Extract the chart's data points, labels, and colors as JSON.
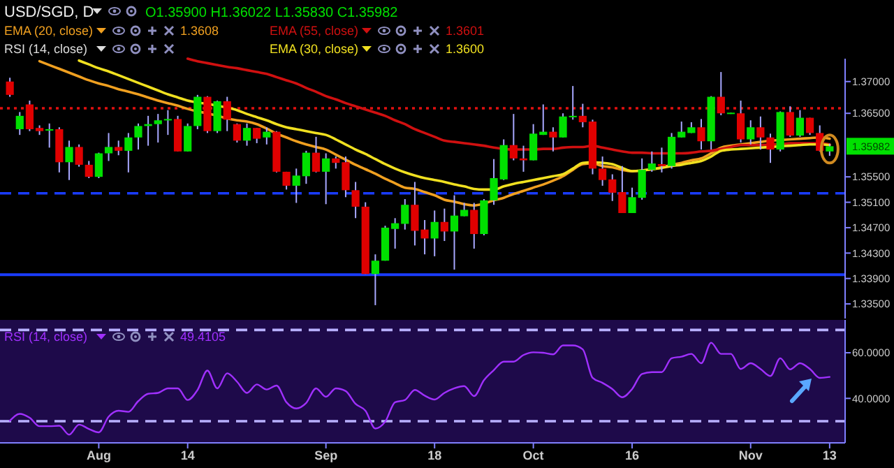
{
  "chart_data": [
    {
      "type": "candlestick",
      "title": "USD/SGD, D",
      "subtitle": "O1.35900 H1.36022 L1.35830 C1.35982",
      "legend": "top left",
      "tick_labels": "y",
      "categories": [
        null,
        null,
        null,
        null,
        null,
        null,
        null,
        null,
        null,
        null,
        null,
        null,
        null,
        null,
        null,
        null,
        null,
        null,
        null,
        null,
        null,
        null,
        null,
        null,
        null,
        null,
        null,
        null,
        null,
        null,
        null,
        null,
        null,
        null,
        null,
        null,
        null,
        null,
        null,
        null,
        null,
        null,
        null,
        null,
        null,
        null,
        null,
        null,
        null,
        null,
        null,
        null,
        null,
        null,
        null,
        null,
        null,
        null,
        null,
        null,
        null,
        null,
        null,
        null,
        null,
        null,
        null,
        null,
        null,
        null,
        null,
        null,
        null,
        null,
        null,
        null,
        null,
        null,
        null,
        null,
        null,
        null,
        null,
        null
      ],
      "ohlc": [
        [
          1.37,
          1.3706,
          1.3676,
          1.3679
        ],
        [
          1.3625,
          1.3652,
          1.3616,
          1.3646
        ],
        [
          1.3664,
          1.367,
          1.3622,
          1.3625
        ],
        [
          1.3627,
          1.3631,
          1.3616,
          1.3622
        ],
        [
          1.3624,
          1.3634,
          1.3596,
          1.3625
        ],
        [
          1.3625,
          1.3628,
          1.3557,
          1.3573
        ],
        [
          1.3573,
          1.3607,
          1.3545,
          1.3597
        ],
        [
          1.3597,
          1.3601,
          1.3566,
          1.3569
        ],
        [
          1.3569,
          1.3575,
          1.3548,
          1.355
        ],
        [
          1.355,
          1.3588,
          1.3548,
          1.3587
        ],
        [
          1.3587,
          1.3619,
          1.3575,
          1.3597
        ],
        [
          1.3597,
          1.3607,
          1.3584,
          1.3591
        ],
        [
          1.3591,
          1.3619,
          1.3557,
          1.3612
        ],
        [
          1.3612,
          1.3634,
          1.3593,
          1.363
        ],
        [
          1.363,
          1.3646,
          1.3599,
          1.3633
        ],
        [
          1.3633,
          1.3649,
          1.3604,
          1.3639
        ],
        [
          1.3639,
          1.3655,
          1.3616,
          1.3641
        ],
        [
          1.3641,
          1.3646,
          1.359,
          1.359
        ],
        [
          1.359,
          1.3634,
          1.359,
          1.363
        ],
        [
          1.363,
          1.3679,
          1.3625,
          1.3676
        ],
        [
          1.3676,
          1.3677,
          1.3619,
          1.3622
        ],
        [
          1.3622,
          1.367,
          1.3619,
          1.3669
        ],
        [
          1.3669,
          1.3676,
          1.3622,
          1.364
        ],
        [
          1.3633,
          1.3634,
          1.3604,
          1.3607
        ],
        [
          1.3607,
          1.3634,
          1.3599,
          1.3627
        ],
        [
          1.3627,
          1.3627,
          1.3603,
          1.361
        ],
        [
          1.3612,
          1.3628,
          1.3601,
          1.3621
        ],
        [
          1.3621,
          1.3622,
          1.3557,
          1.3558
        ],
        [
          1.3558,
          1.3558,
          1.353,
          1.3536
        ],
        [
          1.3536,
          1.3563,
          1.3509,
          1.3552
        ],
        [
          1.3551,
          1.3591,
          1.3539,
          1.3588
        ],
        [
          1.3588,
          1.3613,
          1.3557,
          1.3558
        ],
        [
          1.3558,
          1.3587,
          1.3507,
          1.3579
        ],
        [
          1.3579,
          1.3582,
          1.3563,
          1.3572
        ],
        [
          1.3573,
          1.3582,
          1.3518,
          1.3529
        ],
        [
          1.3529,
          1.3542,
          1.3485,
          1.3503
        ],
        [
          1.3503,
          1.351,
          1.3397,
          1.3397
        ],
        [
          1.3397,
          1.3428,
          1.3348,
          1.3418
        ],
        [
          1.3418,
          1.3473,
          1.3418,
          1.347
        ],
        [
          1.3468,
          1.3485,
          1.3437,
          1.3477
        ],
        [
          1.3476,
          1.3515,
          1.3467,
          1.3506
        ],
        [
          1.3506,
          1.3542,
          1.3442,
          1.3465
        ],
        [
          1.3467,
          1.3482,
          1.3428,
          1.3453
        ],
        [
          1.3453,
          1.3497,
          1.3425,
          1.3479
        ],
        [
          1.3479,
          1.35,
          1.3449,
          1.3464
        ],
        [
          1.3464,
          1.3521,
          1.3404,
          1.3489
        ],
        [
          1.3488,
          1.3509,
          1.3488,
          1.3498
        ],
        [
          1.3498,
          1.3509,
          1.3437,
          1.346
        ],
        [
          1.346,
          1.3515,
          1.3458,
          1.3513
        ],
        [
          1.3513,
          1.3578,
          1.3506,
          1.3548
        ],
        [
          1.3546,
          1.3609,
          1.3545,
          1.36
        ],
        [
          1.36,
          1.3649,
          1.3576,
          1.3579
        ],
        [
          1.3579,
          1.3599,
          1.3558,
          1.3576
        ],
        [
          1.3576,
          1.3633,
          1.3576,
          1.3618
        ],
        [
          1.3616,
          1.3664,
          1.3616,
          1.3621
        ],
        [
          1.3621,
          1.3628,
          1.359,
          1.3612
        ],
        [
          1.3612,
          1.365,
          1.3612,
          1.3645
        ],
        [
          1.3644,
          1.3693,
          1.364,
          1.3646
        ],
        [
          1.3646,
          1.3665,
          1.3628,
          1.3636
        ],
        [
          1.3637,
          1.364,
          1.3554,
          1.3563
        ],
        [
          1.3563,
          1.3582,
          1.3536,
          1.3545
        ],
        [
          1.3546,
          1.3554,
          1.3512,
          1.3525
        ],
        [
          1.3526,
          1.3567,
          1.3493,
          1.3493
        ],
        [
          1.3493,
          1.3533,
          1.3493,
          1.3518
        ],
        [
          1.3517,
          1.3579,
          1.3514,
          1.3561
        ],
        [
          1.3561,
          1.359,
          1.3558,
          1.3571
        ],
        [
          1.357,
          1.3596,
          1.3557,
          1.3567
        ],
        [
          1.3567,
          1.3619,
          1.3563,
          1.3613
        ],
        [
          1.3612,
          1.3637,
          1.3612,
          1.3621
        ],
        [
          1.3619,
          1.3636,
          1.3619,
          1.3628
        ],
        [
          1.3628,
          1.3641,
          1.3593,
          1.3606
        ],
        [
          1.3606,
          1.3677,
          1.3593,
          1.3676
        ],
        [
          1.3676,
          1.3715,
          1.3647,
          1.365
        ],
        [
          1.365,
          1.3651,
          1.3649,
          1.3651
        ],
        [
          1.365,
          1.367,
          1.3604,
          1.3609
        ],
        [
          1.3609,
          1.3639,
          1.3601,
          1.3628
        ],
        [
          1.3628,
          1.3645,
          1.3593,
          1.3612
        ],
        [
          1.3612,
          1.3618,
          1.3572,
          1.3593
        ],
        [
          1.3593,
          1.3653,
          1.359,
          1.3652
        ],
        [
          1.3652,
          1.3661,
          1.3613,
          1.3615
        ],
        [
          1.3615,
          1.3655,
          1.3613,
          1.3643
        ],
        [
          1.3643,
          1.3643,
          1.3616,
          1.3619
        ],
        [
          1.3619,
          1.3631,
          1.359,
          1.3591
        ],
        [
          1.359,
          1.36022,
          1.3583,
          1.35982
        ]
      ],
      "series": [
        {
          "type": "line",
          "name": "EMA (20, close)",
          "color": "#f0a020",
          "values": [
            null,
            null,
            null,
            1.3732,
            1.3726,
            1.372,
            1.3714,
            1.3708,
            1.3702,
            1.3697,
            1.3693,
            1.3688,
            1.3684,
            1.368,
            1.3675,
            1.367,
            1.3666,
            1.3662,
            1.3657,
            1.3653,
            1.365,
            1.3646,
            1.3642,
            1.3639,
            1.3637,
            1.3633,
            1.3626,
            1.3618,
            1.3612,
            1.3606,
            1.3601,
            1.3597,
            1.3593,
            1.3585,
            1.3577,
            1.3569,
            1.3562,
            1.3555,
            1.3547,
            1.354,
            1.3533,
            1.3531,
            1.3526,
            1.3521,
            1.3514,
            1.3511,
            1.3507,
            1.3505,
            1.3508,
            1.3513,
            1.3517,
            1.3523,
            1.3528,
            1.3533,
            1.3538,
            1.3544,
            1.3551,
            1.3561,
            1.357,
            1.3571,
            1.3567,
            1.3565,
            1.3561,
            1.3559,
            1.356,
            1.3562,
            1.3565,
            1.3569,
            1.3572,
            1.3576,
            1.3579,
            1.3587,
            1.3596,
            1.3599,
            1.3601,
            1.3603,
            1.3605,
            1.3607,
            1.3608,
            1.3609,
            1.361,
            1.3611,
            1.3612,
            1.361
          ]
        },
        {
          "type": "line",
          "name": "EMA (55, close)",
          "color": "#d01010",
          "values": [
            null,
            null,
            null,
            null,
            null,
            null,
            null,
            null,
            null,
            null,
            null,
            null,
            null,
            null,
            null,
            null,
            null,
            null,
            1.3736,
            1.3732,
            1.3729,
            1.3726,
            1.3723,
            1.3721,
            1.3718,
            1.3715,
            1.3712,
            1.3707,
            1.3702,
            1.3697,
            1.369,
            1.3684,
            1.3677,
            1.3672,
            1.3666,
            1.3661,
            1.3656,
            1.3651,
            1.3646,
            1.3639,
            1.3633,
            1.3625,
            1.3619,
            1.3613,
            1.3607,
            1.3605,
            1.3603,
            1.3601,
            1.3599,
            1.3596,
            1.3594,
            1.3593,
            1.3593,
            1.3593,
            1.3594,
            1.3594,
            1.3596,
            1.3597,
            1.3597,
            1.3599,
            1.3596,
            1.3593,
            1.359,
            1.3588,
            1.3588,
            1.3587,
            1.3587,
            1.3587,
            1.3587,
            1.3588,
            1.359,
            1.3591,
            1.3594,
            1.3597,
            1.36,
            1.36,
            1.36,
            1.3601,
            1.3601,
            1.3603,
            1.3603,
            1.3603,
            1.3603,
            1.3601
          ]
        },
        {
          "type": "line",
          "name": "EMA (30, close)",
          "color": "#f0e020",
          "values": [
            null,
            null,
            null,
            null,
            null,
            null,
            null,
            1.3733,
            1.3727,
            1.3721,
            1.3716,
            1.371,
            1.3704,
            1.3698,
            1.3692,
            1.3686,
            1.368,
            1.3675,
            1.367,
            1.3667,
            1.3665,
            1.3662,
            1.3659,
            1.3655,
            1.3649,
            1.3644,
            1.3639,
            1.3633,
            1.3628,
            1.3625,
            1.3622,
            1.3619,
            1.3616,
            1.3609,
            1.3601,
            1.3593,
            1.3586,
            1.3578,
            1.357,
            1.3563,
            1.3557,
            1.3552,
            1.3548,
            1.3545,
            1.3542,
            1.3538,
            1.3535,
            1.3531,
            1.353,
            1.353,
            1.3535,
            1.3539,
            1.3542,
            1.3545,
            1.3548,
            1.3551,
            1.3554,
            1.3563,
            1.3572,
            1.3573,
            1.3572,
            1.357,
            1.3564,
            1.3559,
            1.356,
            1.3562,
            1.3564,
            1.3567,
            1.3569,
            1.3572,
            1.3575,
            1.3582,
            1.3591,
            1.3593,
            1.3594,
            1.3595,
            1.3596,
            1.3597,
            1.3598,
            1.3599,
            1.36,
            1.3601,
            1.3601,
            1.36
          ]
        }
      ],
      "ylim": [
        1.3327,
        1.3736
      ],
      "yticks": [
        {
          "value": 1.37,
          "label": "1.37000"
        },
        {
          "value": 1.365,
          "label": "1.36500"
        },
        {
          "value": 1.355,
          "label": "1.35500"
        },
        {
          "value": 1.351,
          "label": "1.35100"
        },
        {
          "value": 1.347,
          "label": "1.34700"
        },
        {
          "value": 1.343,
          "label": "1.34300"
        },
        {
          "value": 1.339,
          "label": "1.33900"
        },
        {
          "value": 1.335,
          "label": "1.33500"
        }
      ],
      "ref_lines": [
        {
          "axis": "y",
          "value": 1.3658,
          "color": "#e01010",
          "line_style": "dotted"
        },
        {
          "axis": "y",
          "value": 1.3524,
          "color": "#1a3cff",
          "line_style": "dashed"
        },
        {
          "axis": "y",
          "value": 1.3396,
          "color": "#1a3cff",
          "line_style": "solid"
        }
      ],
      "annotations": [
        "RSI (14, close)",
        "1.3608",
        "1.3601",
        "1.3600",
        {
          "text": "1.35982",
          "y": 1.35982
        }
      ]
    },
    {
      "type": "line",
      "legend": "top left",
      "categories": [
        null,
        null,
        null,
        null,
        null,
        null,
        null,
        null,
        null,
        "Aug",
        null,
        null,
        null,
        null,
        null,
        null,
        null,
        null,
        "14",
        null,
        null,
        null,
        null,
        null,
        null,
        null,
        null,
        null,
        null,
        null,
        null,
        null,
        "Sep",
        null,
        null,
        null,
        null,
        null,
        null,
        null,
        null,
        null,
        null,
        "18",
        null,
        null,
        null,
        null,
        null,
        null,
        null,
        null,
        null,
        "Oct",
        null,
        null,
        null,
        null,
        null,
        null,
        null,
        null,
        null,
        "16",
        null,
        null,
        null,
        null,
        null,
        null,
        null,
        null,
        null,
        null,
        null,
        "Nov",
        null,
        null,
        null,
        null,
        null,
        null,
        null,
        "13"
      ],
      "series": [
        {
          "name": "RSI (14, close)",
          "color": "#a030ff",
          "values": [
            30.2,
            33.2,
            31.5,
            27.8,
            27.8,
            28.0,
            24.1,
            28.5,
            26.6,
            25.1,
            32.0,
            34.6,
            34.1,
            38.8,
            42.0,
            42.4,
            44.4,
            44.4,
            39.3,
            43.7,
            52.2,
            44.4,
            51.0,
            47.3,
            42.4,
            46.1,
            43.9,
            45.6,
            38.3,
            35.6,
            38.0,
            44.4,
            40.7,
            44.4,
            43.2,
            37.6,
            34.6,
            26.8,
            29.8,
            38.3,
            39.3,
            43.7,
            41.2,
            39.5,
            42.4,
            44.4,
            45.4,
            41.0,
            48.0,
            52.4,
            56.1,
            56.1,
            59.0,
            60.2,
            60.0,
            59.3,
            63.2,
            63.2,
            61.5,
            49.0,
            46.8,
            44.1,
            40.5,
            44.1,
            50.7,
            51.5,
            51.5,
            57.6,
            58.3,
            59.5,
            55.4,
            64.4,
            59.5,
            59.5,
            52.9,
            55.4,
            52.9,
            49.8,
            57.6,
            52.7,
            55.4,
            52.9,
            49.0,
            49.4105
          ]
        }
      ],
      "ylim": [
        20.5,
        74.4
      ],
      "yticks": [
        {
          "value": 40,
          "label": "40.0000"
        },
        {
          "value": 60,
          "label": "60.0000"
        }
      ],
      "ref_lines": [
        {
          "axis": "y",
          "value": 70,
          "color": "#b8b0ff",
          "line_style": "dashed"
        },
        {
          "axis": "y",
          "value": 30,
          "color": "#b8b0ff",
          "line_style": "dashed"
        }
      ],
      "annotations": [
        "49.4105"
      ]
    }
  ]
}
